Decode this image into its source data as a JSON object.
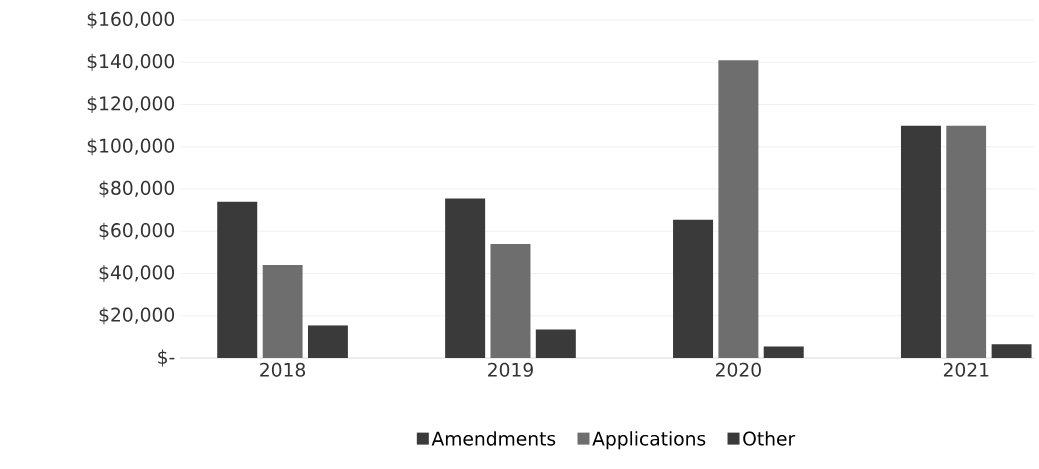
{
  "chart_data": {
    "type": "bar",
    "categories": [
      "2018",
      "2019",
      "2020",
      "2021"
    ],
    "series": [
      {
        "name": "Amendments",
        "color": "#3a3a3a",
        "values": [
          74000,
          75500,
          65500,
          110000
        ]
      },
      {
        "name": "Applications",
        "color": "#6e6e6e",
        "values": [
          44000,
          54000,
          141000,
          110000
        ]
      },
      {
        "name": "Other",
        "color": "#3a3a3a",
        "values": [
          15500,
          13500,
          5500,
          6500
        ]
      }
    ],
    "ylim": [
      0,
      160000
    ],
    "yticks": [
      {
        "value": 0,
        "label": "$-"
      },
      {
        "value": 20000,
        "label": "$20,000"
      },
      {
        "value": 40000,
        "label": "$40,000"
      },
      {
        "value": 60000,
        "label": "$60,000"
      },
      {
        "value": 80000,
        "label": "$80,000"
      },
      {
        "value": 100000,
        "label": "$100,000"
      },
      {
        "value": 120000,
        "label": "$120,000"
      },
      {
        "value": 140000,
        "label": "$140,000"
      },
      {
        "value": 160000,
        "label": "$160,000"
      }
    ],
    "grid": "y",
    "legend": "bottom"
  }
}
